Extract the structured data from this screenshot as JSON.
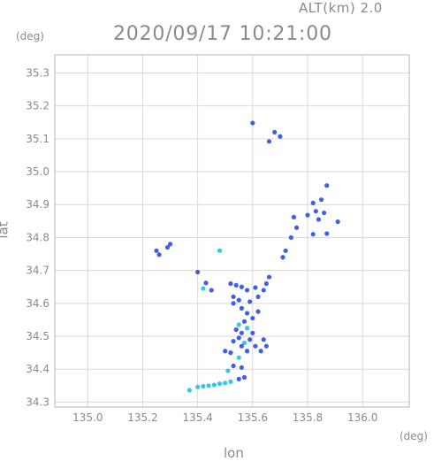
{
  "header": {
    "altitude_label": "ALT(km) 2.0",
    "timestamp": "2020/09/17 10:21:00"
  },
  "chart_data": {
    "type": "scatter",
    "xlabel": "lon",
    "ylabel": "lat",
    "x_unit": "(deg)",
    "y_unit": "(deg)",
    "xlim": [
      134.88,
      136.17
    ],
    "ylim": [
      34.285,
      35.355
    ],
    "x_ticks": [
      "135.0",
      "135.2",
      "135.4",
      "135.6",
      "135.8",
      "136.0"
    ],
    "y_ticks": [
      "34.3",
      "34.4",
      "34.5",
      "34.6",
      "34.7",
      "34.8",
      "34.9",
      "35.0",
      "35.1",
      "35.2",
      "35.3"
    ],
    "grid": true,
    "colors": {
      "main": "#3f5fe8",
      "light": "#35c8e0",
      "dark": "#2b3fc8",
      "frame": "#b5b5b5"
    },
    "points": [
      {
        "lon": 135.6,
        "lat": 35.148,
        "c": "main"
      },
      {
        "lon": 135.68,
        "lat": 35.12,
        "c": "main"
      },
      {
        "lon": 135.7,
        "lat": 35.107,
        "c": "main"
      },
      {
        "lon": 135.66,
        "lat": 35.092,
        "c": "main"
      },
      {
        "lon": 135.87,
        "lat": 34.958,
        "c": "main"
      },
      {
        "lon": 135.85,
        "lat": 34.915,
        "c": "main"
      },
      {
        "lon": 135.82,
        "lat": 34.905,
        "c": "main"
      },
      {
        "lon": 135.83,
        "lat": 34.88,
        "c": "main"
      },
      {
        "lon": 135.86,
        "lat": 34.875,
        "c": "main"
      },
      {
        "lon": 135.8,
        "lat": 34.868,
        "c": "main"
      },
      {
        "lon": 135.84,
        "lat": 34.855,
        "c": "main"
      },
      {
        "lon": 135.91,
        "lat": 34.848,
        "c": "main"
      },
      {
        "lon": 135.75,
        "lat": 34.862,
        "c": "main"
      },
      {
        "lon": 135.76,
        "lat": 34.83,
        "c": "main"
      },
      {
        "lon": 135.87,
        "lat": 34.812,
        "c": "main"
      },
      {
        "lon": 135.82,
        "lat": 34.81,
        "c": "main"
      },
      {
        "lon": 135.74,
        "lat": 34.8,
        "c": "main"
      },
      {
        "lon": 135.72,
        "lat": 34.76,
        "c": "main"
      },
      {
        "lon": 135.71,
        "lat": 34.74,
        "c": "main"
      },
      {
        "lon": 135.25,
        "lat": 34.76,
        "c": "main"
      },
      {
        "lon": 135.26,
        "lat": 34.748,
        "c": "main"
      },
      {
        "lon": 135.3,
        "lat": 34.78,
        "c": "main"
      },
      {
        "lon": 135.29,
        "lat": 34.77,
        "c": "main"
      },
      {
        "lon": 135.48,
        "lat": 34.76,
        "c": "light"
      },
      {
        "lon": 135.4,
        "lat": 34.695,
        "c": "main"
      },
      {
        "lon": 135.43,
        "lat": 34.662,
        "c": "main"
      },
      {
        "lon": 135.45,
        "lat": 34.64,
        "c": "main"
      },
      {
        "lon": 135.42,
        "lat": 34.645,
        "c": "light"
      },
      {
        "lon": 135.52,
        "lat": 34.66,
        "c": "main"
      },
      {
        "lon": 135.54,
        "lat": 34.655,
        "c": "main"
      },
      {
        "lon": 135.56,
        "lat": 34.65,
        "c": "main"
      },
      {
        "lon": 135.58,
        "lat": 34.64,
        "c": "main"
      },
      {
        "lon": 135.61,
        "lat": 34.648,
        "c": "main"
      },
      {
        "lon": 135.66,
        "lat": 34.68,
        "c": "main"
      },
      {
        "lon": 135.65,
        "lat": 34.66,
        "c": "main"
      },
      {
        "lon": 135.64,
        "lat": 34.64,
        "c": "main"
      },
      {
        "lon": 135.62,
        "lat": 34.62,
        "c": "main"
      },
      {
        "lon": 135.59,
        "lat": 34.605,
        "c": "main"
      },
      {
        "lon": 135.55,
        "lat": 34.61,
        "c": "main"
      },
      {
        "lon": 135.53,
        "lat": 34.6,
        "c": "main"
      },
      {
        "lon": 135.53,
        "lat": 34.62,
        "c": "main"
      },
      {
        "lon": 135.56,
        "lat": 34.585,
        "c": "main"
      },
      {
        "lon": 135.58,
        "lat": 34.57,
        "c": "main"
      },
      {
        "lon": 135.62,
        "lat": 34.575,
        "c": "main"
      },
      {
        "lon": 135.6,
        "lat": 34.555,
        "c": "main"
      },
      {
        "lon": 135.57,
        "lat": 34.545,
        "c": "main"
      },
      {
        "lon": 135.55,
        "lat": 34.535,
        "c": "light"
      },
      {
        "lon": 135.54,
        "lat": 34.52,
        "c": "main"
      },
      {
        "lon": 135.56,
        "lat": 34.51,
        "c": "main"
      },
      {
        "lon": 135.58,
        "lat": 34.525,
        "c": "light"
      },
      {
        "lon": 135.6,
        "lat": 34.51,
        "c": "main"
      },
      {
        "lon": 135.55,
        "lat": 34.495,
        "c": "main"
      },
      {
        "lon": 135.57,
        "lat": 34.48,
        "c": "light"
      },
      {
        "lon": 135.59,
        "lat": 34.49,
        "c": "main"
      },
      {
        "lon": 135.53,
        "lat": 34.485,
        "c": "main"
      },
      {
        "lon": 135.56,
        "lat": 34.47,
        "c": "main"
      },
      {
        "lon": 135.61,
        "lat": 34.47,
        "c": "main"
      },
      {
        "lon": 135.64,
        "lat": 34.49,
        "c": "main"
      },
      {
        "lon": 135.65,
        "lat": 34.47,
        "c": "main"
      },
      {
        "lon": 135.63,
        "lat": 34.455,
        "c": "main"
      },
      {
        "lon": 135.58,
        "lat": 34.455,
        "c": "main"
      },
      {
        "lon": 135.52,
        "lat": 34.45,
        "c": "main"
      },
      {
        "lon": 135.5,
        "lat": 34.455,
        "c": "main"
      },
      {
        "lon": 135.55,
        "lat": 34.435,
        "c": "light"
      },
      {
        "lon": 135.53,
        "lat": 34.41,
        "c": "main"
      },
      {
        "lon": 135.56,
        "lat": 34.405,
        "c": "main"
      },
      {
        "lon": 135.51,
        "lat": 34.395,
        "c": "light"
      },
      {
        "lon": 135.57,
        "lat": 34.375,
        "c": "main"
      },
      {
        "lon": 135.55,
        "lat": 34.37,
        "c": "main"
      },
      {
        "lon": 135.52,
        "lat": 34.362,
        "c": "light"
      },
      {
        "lon": 135.5,
        "lat": 34.358,
        "c": "light"
      },
      {
        "lon": 135.48,
        "lat": 34.356,
        "c": "light"
      },
      {
        "lon": 135.46,
        "lat": 34.352,
        "c": "light"
      },
      {
        "lon": 135.44,
        "lat": 34.35,
        "c": "light"
      },
      {
        "lon": 135.42,
        "lat": 34.348,
        "c": "light"
      },
      {
        "lon": 135.4,
        "lat": 34.346,
        "c": "light"
      },
      {
        "lon": 135.37,
        "lat": 34.336,
        "c": "light"
      }
    ]
  }
}
